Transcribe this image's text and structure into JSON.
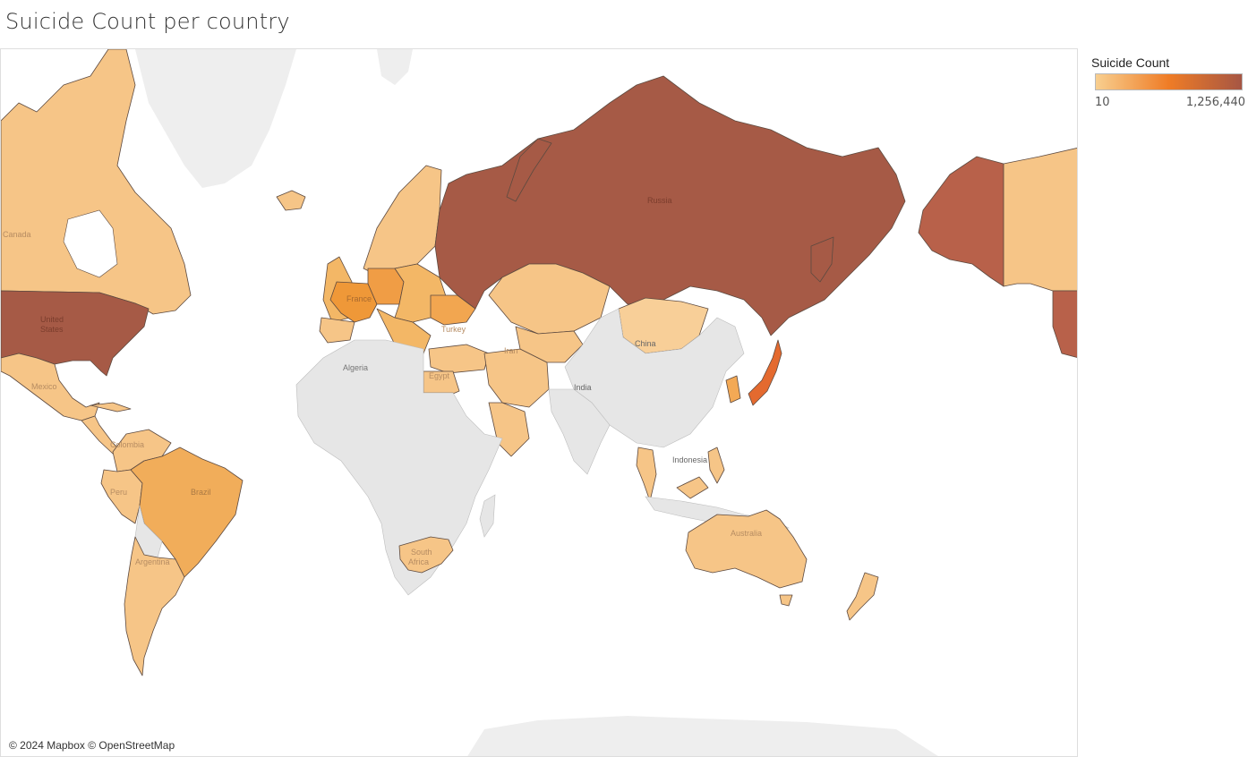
{
  "title": "Suicide Count per country",
  "legend": {
    "title": "Suicide Count",
    "min_label": "10",
    "max_label": "1,256,440",
    "min_value": 10,
    "max_value": 1256440,
    "color_low": "#f8cf8f",
    "color_mid": "#ef7c26",
    "color_high": "#a65644"
  },
  "attribution": "© 2024 Mapbox © OpenStreetMap",
  "map_labels": {
    "canada": "Canada",
    "united_states_1": "United",
    "united_states_2": "States",
    "mexico": "Mexico",
    "colombia": "Colombia",
    "peru": "Peru",
    "brazil": "Brazil",
    "argentina": "Argentina",
    "algeria": "Algeria",
    "egypt": "Egypt",
    "south_africa_1": "South",
    "south_africa_2": "Africa",
    "france": "France",
    "turkey": "Turkey",
    "iran": "Iran",
    "russia": "Russia",
    "china": "China",
    "india": "India",
    "indonesia": "Indonesia",
    "australia": "Australia"
  },
  "regions": [
    {
      "name": "Russia",
      "level": "high"
    },
    {
      "name": "United States",
      "level": "high"
    },
    {
      "name": "Japan",
      "level": "upper"
    },
    {
      "name": "France",
      "level": "mid"
    },
    {
      "name": "Germany",
      "level": "mid"
    },
    {
      "name": "Ukraine",
      "level": "mid"
    },
    {
      "name": "Brazil",
      "level": "mid"
    },
    {
      "name": "Korea",
      "level": "mid"
    },
    {
      "name": "Canada",
      "level": "low"
    },
    {
      "name": "Mexico",
      "level": "low"
    },
    {
      "name": "Argentina",
      "level": "low"
    },
    {
      "name": "Kazakhstan",
      "level": "low"
    },
    {
      "name": "Mongolia",
      "level": "low"
    },
    {
      "name": "Australia",
      "level": "low"
    },
    {
      "name": "South Africa",
      "level": "low"
    },
    {
      "name": "Egypt",
      "level": "low"
    },
    {
      "name": "Thailand",
      "level": "low"
    }
  ]
}
